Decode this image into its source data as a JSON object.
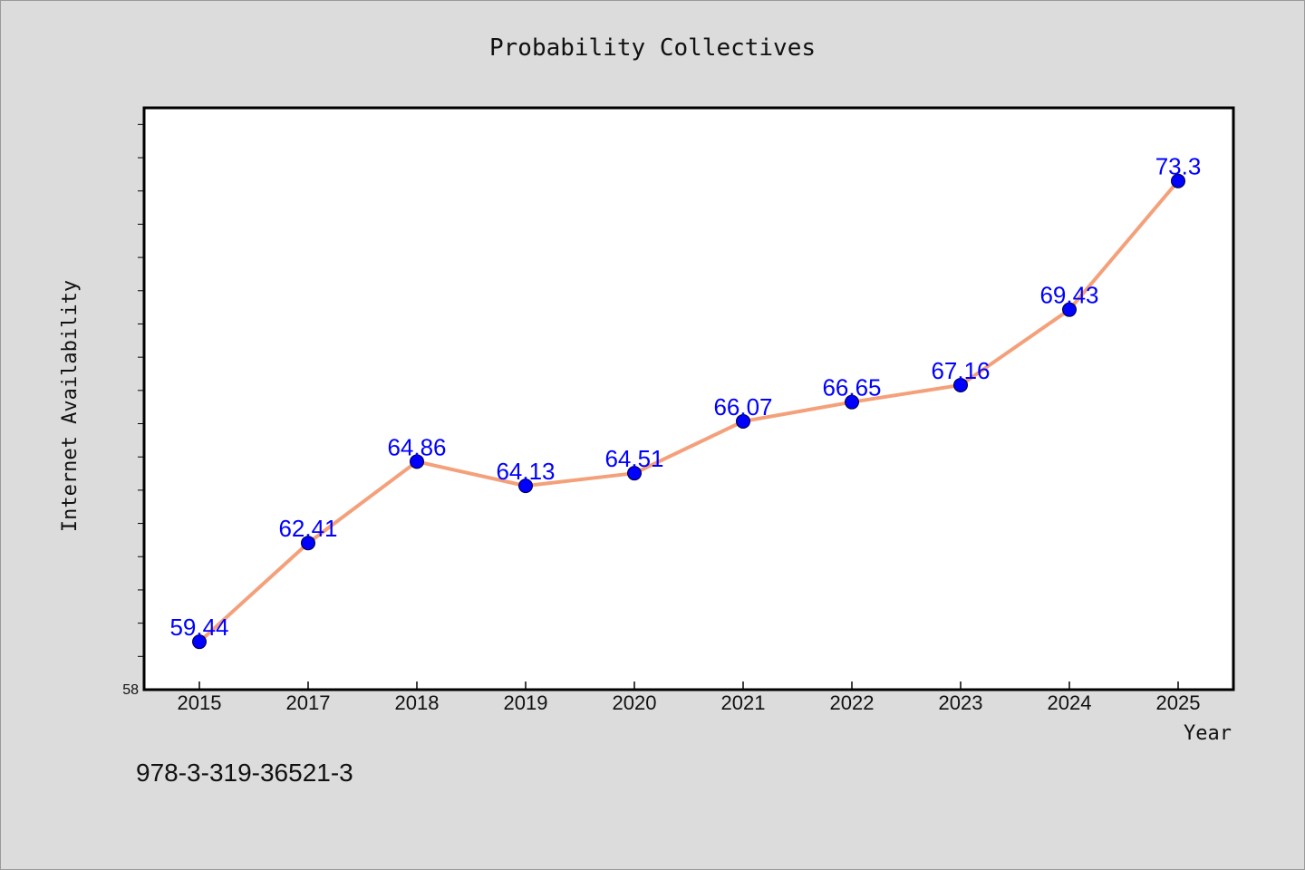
{
  "chart_data": {
    "type": "line",
    "title": "Probability Collectives",
    "xlabel": "Year",
    "ylabel": "Internet Availability",
    "categories": [
      "2015",
      "2017",
      "2018",
      "2019",
      "2020",
      "2021",
      "2022",
      "2023",
      "2024",
      "2025"
    ],
    "series": [
      {
        "values": [
          59.44,
          62.41,
          64.86,
          64.13,
          64.51,
          66.07,
          66.65,
          67.16,
          69.43,
          73.3
        ],
        "data_labels": [
          "59.44",
          "62.41",
          "64.86",
          "64.13",
          "64.51",
          "66.07",
          "66.65",
          "67.16",
          "69.43",
          "73.3"
        ]
      }
    ],
    "ylim": [
      58,
      75.5
    ],
    "y_tick_labels": [
      "58"
    ],
    "y_minor_step": 1,
    "line_color": "#f4a07a",
    "marker_color": "#0000ff",
    "label_color": "#0000ff",
    "grid": false,
    "legend": "none"
  },
  "footer": {
    "isbn": "978-3-319-36521-3"
  }
}
